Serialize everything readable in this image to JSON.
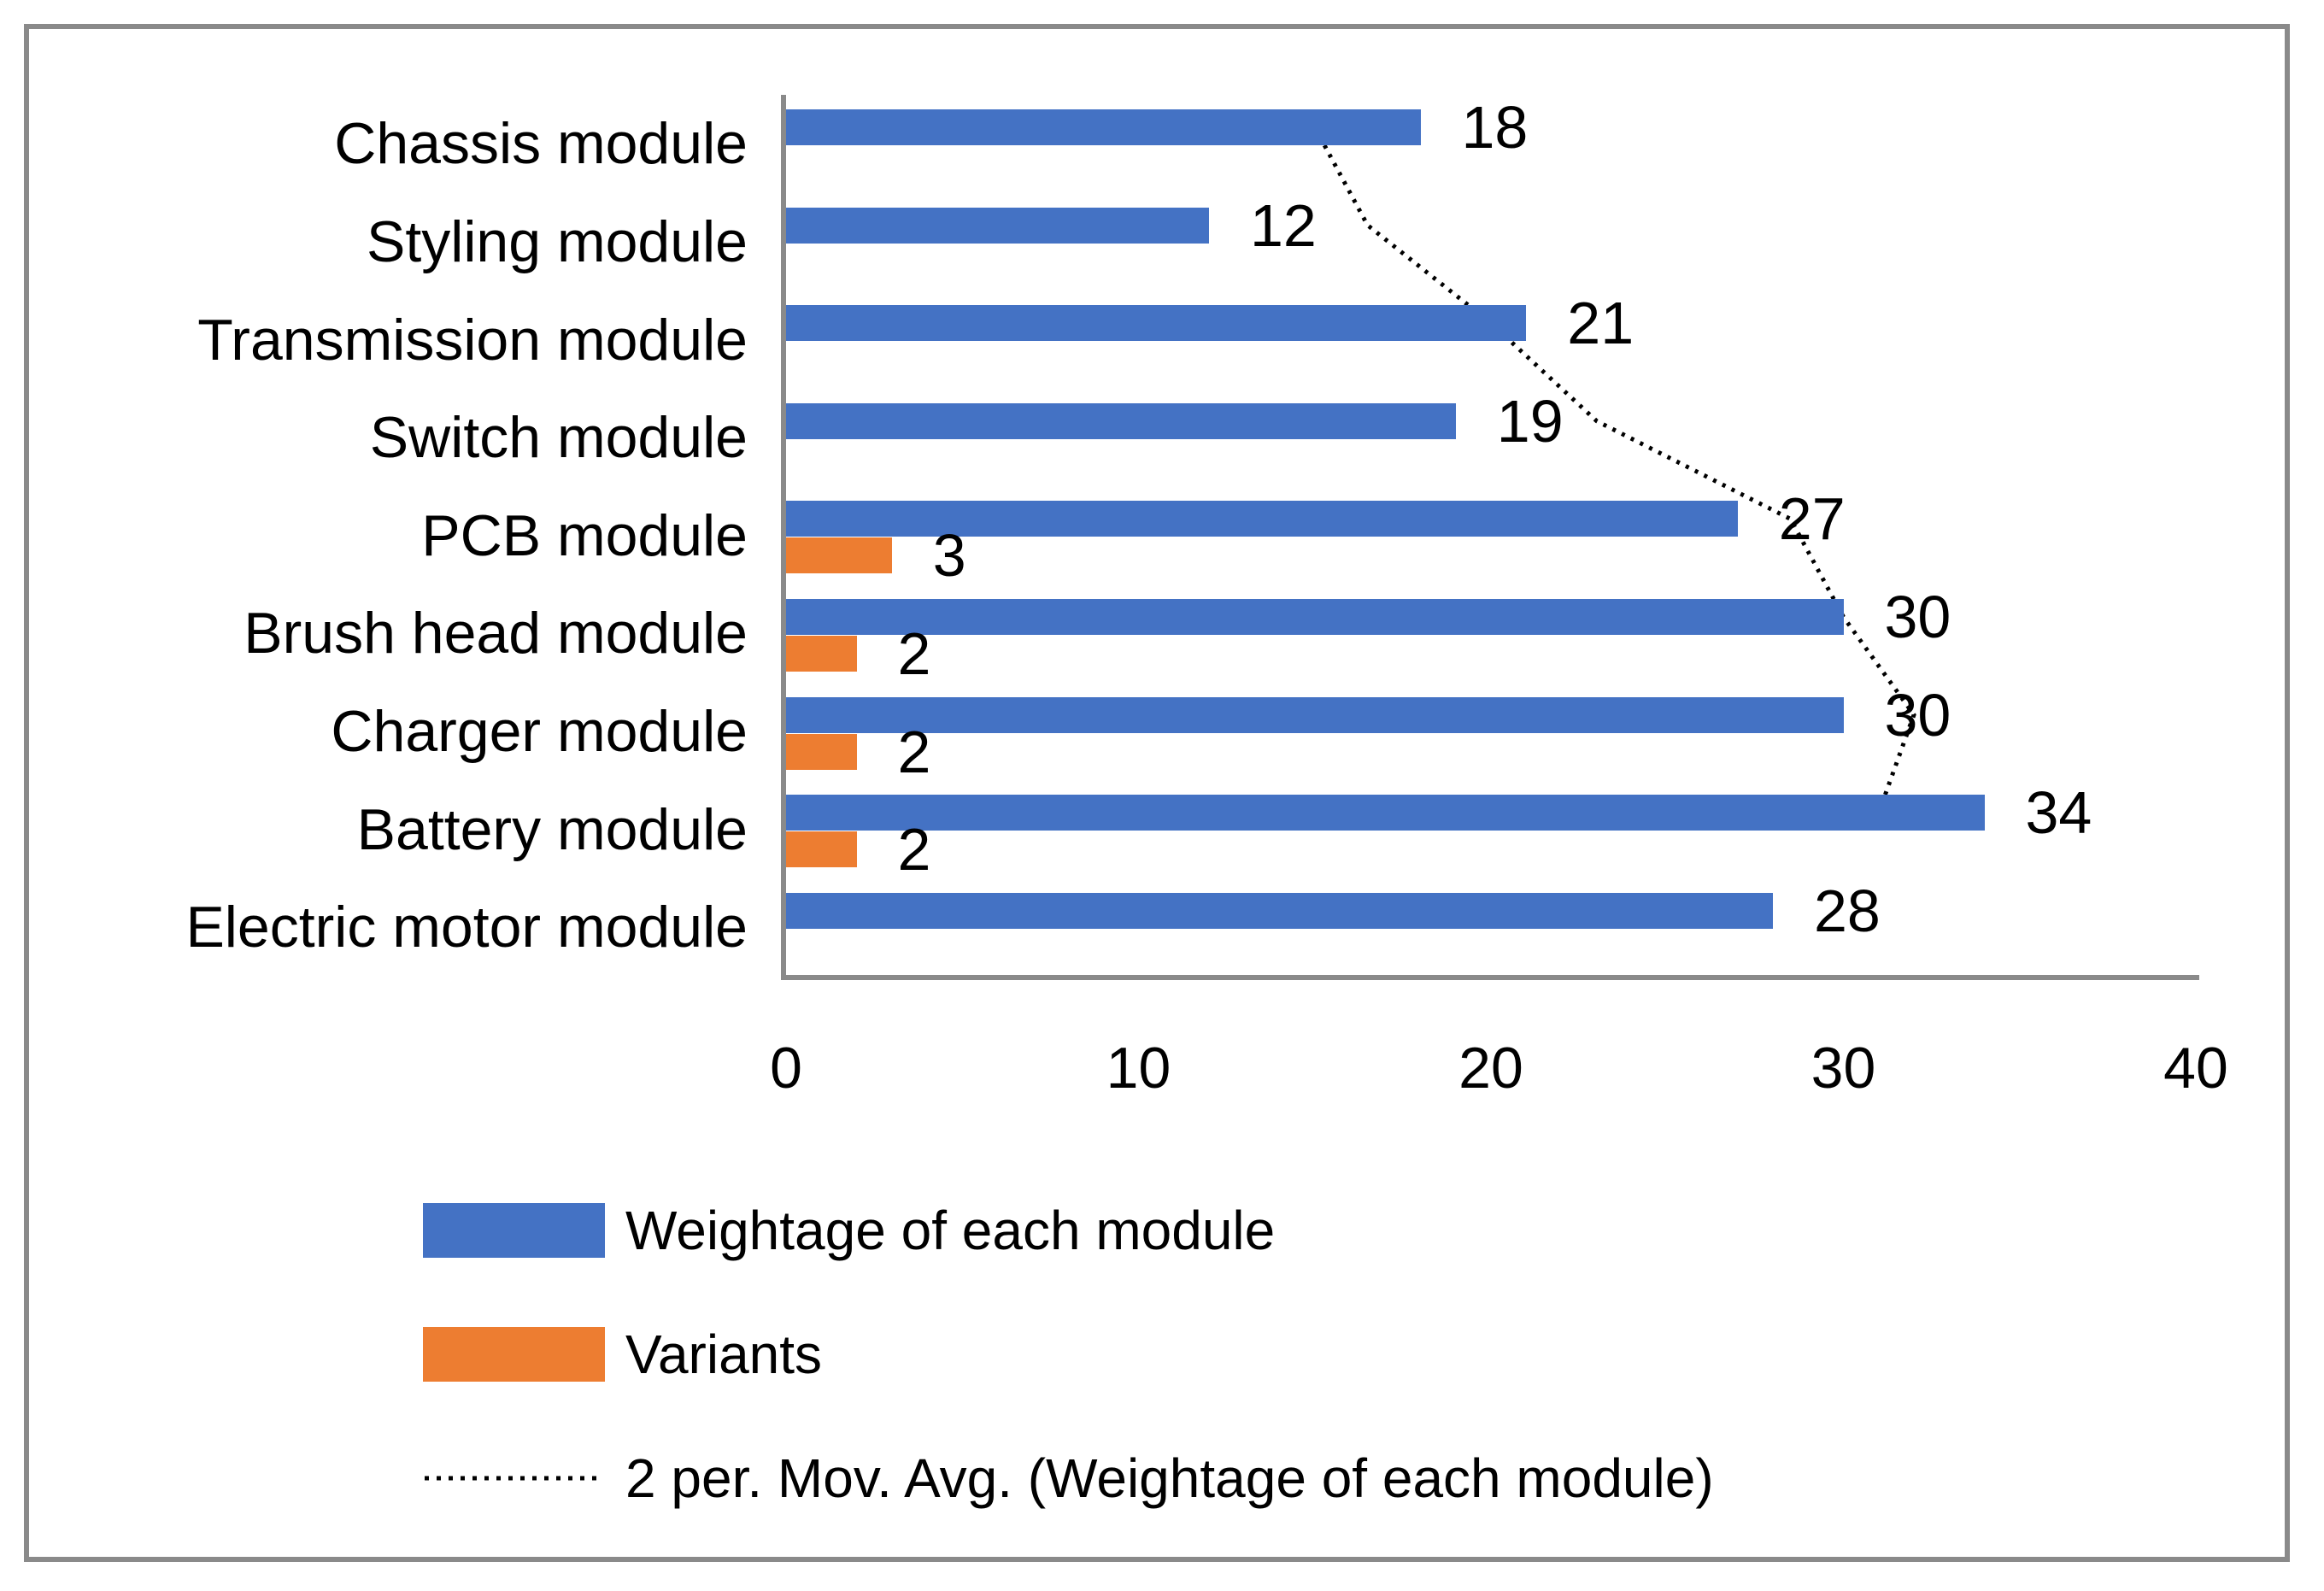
{
  "chart_data": {
    "type": "bar",
    "orientation": "horizontal",
    "categories": [
      "Chassis module",
      "Styling module",
      "Transmission module",
      "Switch module",
      "PCB module",
      "Brush head module",
      "Charger module",
      "Battery module",
      "Electric motor module"
    ],
    "series": [
      {
        "name": "Weightage of each module",
        "color": "#4472C4",
        "values": [
          18,
          12,
          21,
          19,
          27,
          30,
          30,
          34,
          28
        ]
      },
      {
        "name": "Variants",
        "color": "#ED7D31",
        "values": [
          null,
          null,
          null,
          null,
          3,
          2,
          2,
          2,
          null
        ]
      }
    ],
    "trendline": {
      "name": "2 per. Mov. Avg. (Weightage of each module)",
      "period": 2,
      "style": "dotted",
      "color": "#000000",
      "values_by_category": [
        15,
        16.5,
        20,
        23,
        28.5,
        30,
        32,
        31,
        null
      ]
    },
    "x_axis": {
      "min": 0,
      "max": 40,
      "ticks": [
        0,
        10,
        20,
        30,
        40
      ]
    },
    "grid": false,
    "legend_position": "bottom"
  },
  "colors": {
    "weightage": "#4472C4",
    "variants": "#ED7D31",
    "axis": "#8A8A8A",
    "frame": "#8A8A8A",
    "trendline": "#000000",
    "background": "#FFFFFF",
    "text": "#000000"
  }
}
